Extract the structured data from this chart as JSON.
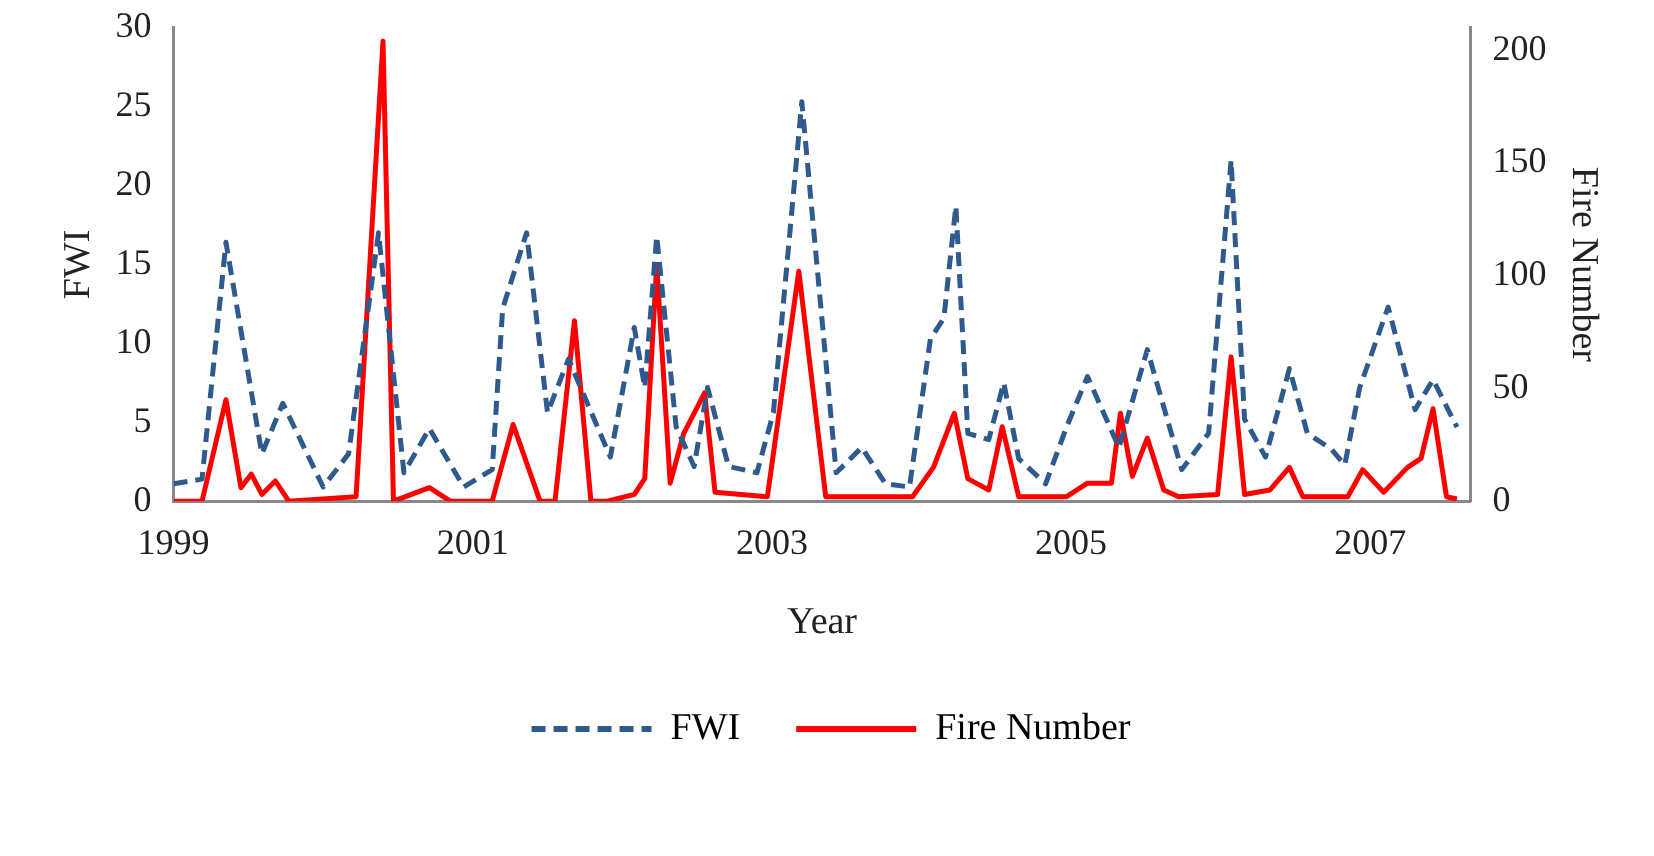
{
  "chart_data": {
    "type": "line",
    "xlabel": "Year",
    "ylabel": "FWI",
    "y2label": "Fire Number",
    "xlim": [
      1999,
      2007.67
    ],
    "xticks": [
      1999,
      2001,
      2003,
      2005,
      2007
    ],
    "ylim": [
      0,
      30
    ],
    "yticks": [
      0,
      5,
      10,
      15,
      20,
      25,
      30
    ],
    "y2lim": [
      0,
      210
    ],
    "y2ticks": [
      0,
      50,
      100,
      150,
      200
    ],
    "grid": false,
    "legend": "bottom",
    "marker": "none",
    "series": [
      {
        "name": "FWI",
        "color": "#2e5a8e",
        "line_style": "dashed",
        "axis": "y",
        "x": [
          1999.0,
          1999.19,
          1999.35,
          1999.59,
          1999.73,
          2000.0,
          2000.17,
          2000.37,
          2000.54,
          2000.71,
          2000.94,
          2001.13,
          2001.2,
          2001.36,
          2001.5,
          2001.64,
          2001.92,
          2002.08,
          2002.15,
          2002.23,
          2002.36,
          2002.48,
          2002.57,
          2002.71,
          2002.9,
          2003.01,
          2003.2,
          2003.43,
          2003.6,
          2003.76,
          2003.92,
          2004.06,
          2004.15,
          2004.23,
          2004.31,
          2004.45,
          2004.55,
          2004.65,
          2004.83,
          2004.97,
          2005.11,
          2005.32,
          2005.51,
          2005.74,
          2005.92,
          2006.07,
          2006.16,
          2006.3,
          2006.46,
          2006.58,
          2006.74,
          2006.83,
          2006.93,
          2007.12,
          2007.3,
          2007.42,
          2007.58
        ],
        "values": [
          1.1,
          1.4,
          16.4,
          3.0,
          6.2,
          0.9,
          3.0,
          17,
          1.8,
          4.6,
          0.9,
          2.0,
          12.2,
          17.0,
          5.6,
          9.0,
          2.8,
          11.0,
          7.2,
          16.8,
          4.7,
          2.2,
          7.2,
          2.2,
          1.8,
          5.6,
          25.3,
          1.8,
          3.4,
          1.1,
          0.9,
          10.3,
          11.6,
          18.7,
          4.3,
          3.9,
          7.5,
          2.7,
          1.1,
          4.7,
          7.9,
          3.4,
          9.6,
          2.0,
          4.3,
          21.6,
          5.2,
          2.8,
          8.4,
          4.3,
          3.3,
          2.3,
          7.2,
          12.3,
          5.8,
          7.7,
          4.7
        ]
      },
      {
        "name": "Fire Number",
        "color": "#ff0000",
        "line_style": "solid",
        "axis": "y2",
        "x": [
          1999.0,
          1999.19,
          1999.35,
          1999.45,
          1999.52,
          1999.59,
          1999.68,
          1999.77,
          2000.22,
          2000.4,
          2000.47,
          2000.71,
          2000.85,
          2001.13,
          2001.27,
          2001.45,
          2001.55,
          2001.68,
          2001.79,
          2001.9,
          2002.08,
          2002.15,
          2002.23,
          2002.32,
          2002.41,
          2002.55,
          2002.62,
          2002.97,
          2003.18,
          2003.36,
          2003.94,
          2004.08,
          2004.22,
          2004.31,
          2004.45,
          2004.54,
          2004.65,
          2004.97,
          2005.11,
          2005.27,
          2005.33,
          2005.41,
          2005.51,
          2005.62,
          2005.72,
          2005.98,
          2006.07,
          2006.16,
          2006.33,
          2006.46,
          2006.55,
          2006.85,
          2006.95,
          2007.09,
          2007.25,
          2007.34,
          2007.42,
          2007.51,
          2007.58
        ],
        "values": [
          0,
          0,
          45,
          6,
          12,
          3,
          9,
          0,
          2,
          204,
          0,
          6,
          0,
          0,
          34,
          0,
          0,
          80,
          0,
          0,
          3,
          10,
          105,
          8,
          30,
          48,
          4,
          2,
          102,
          2,
          2,
          15,
          39,
          10,
          5,
          33,
          2,
          2,
          8,
          8,
          39,
          11,
          28,
          5,
          2,
          3,
          64,
          3,
          5,
          15,
          2,
          2,
          14,
          4,
          15,
          19,
          41,
          2,
          1
        ]
      }
    ]
  }
}
